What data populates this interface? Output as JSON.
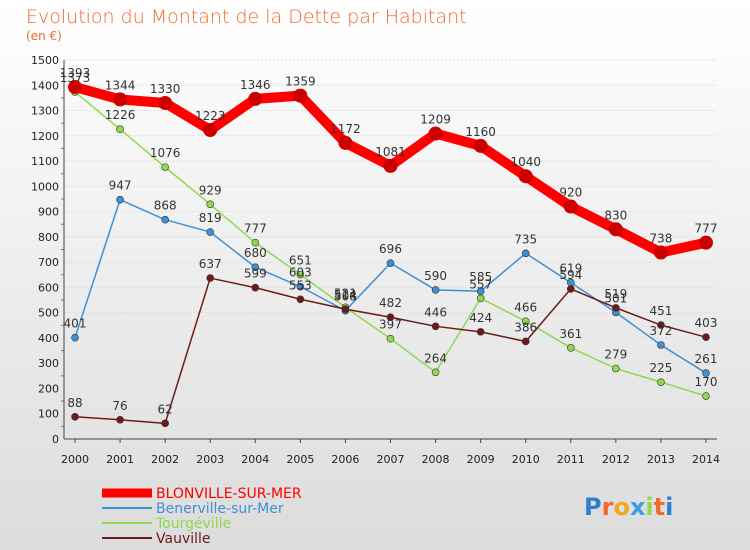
{
  "chart_data": {
    "type": "line",
    "title": "Evolution du Montant de la Dette par Habitant",
    "subtitle": "(en €)",
    "x": [
      "2000",
      "2001",
      "2002",
      "2003",
      "2004",
      "2005",
      "2006",
      "2007",
      "2008",
      "2009",
      "2010",
      "2011",
      "2012",
      "2013",
      "2014"
    ],
    "ylim": [
      0,
      1500
    ],
    "yticks": [
      0,
      100,
      200,
      300,
      400,
      500,
      600,
      700,
      800,
      900,
      1000,
      1100,
      1200,
      1300,
      1400,
      1500
    ],
    "grid": "horizontal",
    "legend_position": "bottom-left",
    "series": [
      {
        "name": "BLONVILLE-SUR-MER",
        "color": "#ff0000",
        "values": [
          1393,
          1344,
          1330,
          1223,
          1346,
          1359,
          1172,
          1081,
          1209,
          1160,
          1040,
          920,
          830,
          738,
          777
        ]
      },
      {
        "name": "Benerville-sur-Mer",
        "color": "#3d8fd6",
        "values": [
          401,
          947,
          868,
          819,
          680,
          603,
          508,
          696,
          590,
          585,
          735,
          619,
          501,
          372,
          261
        ]
      },
      {
        "name": "Tourgéville",
        "color": "#8ed94f",
        "values": [
          1373,
          1226,
          1076,
          929,
          777,
          651,
          521,
          397,
          264,
          557,
          466,
          361,
          279,
          225,
          170
        ]
      },
      {
        "name": "Vauville",
        "color": "#6e1a1a",
        "values": [
          88,
          76,
          62,
          637,
          599,
          553,
          514,
          482,
          446,
          424,
          386,
          594,
          519,
          451,
          403
        ]
      }
    ]
  },
  "branding": {
    "logo_text": "Proxiti"
  },
  "colors": {
    "title": "#f06a2c",
    "background_top": "#ffffff",
    "background_bottom": "#dcdcdc"
  }
}
